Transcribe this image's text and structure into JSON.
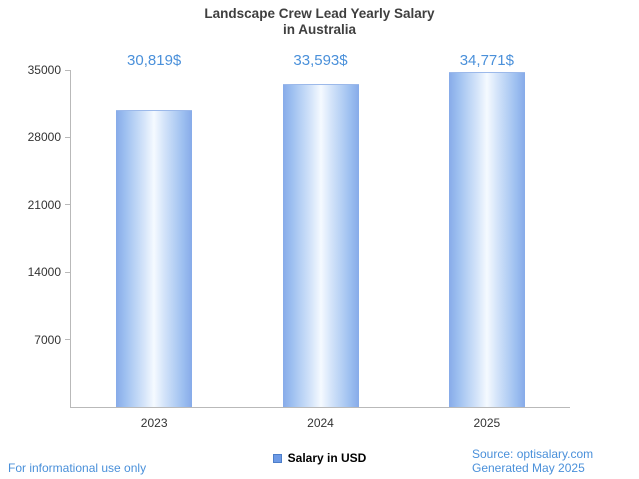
{
  "chart_data": {
    "type": "bar",
    "title": "Landscape Crew Lead Yearly Salary in Australia",
    "title_lines": [
      "Landscape Crew Lead Yearly Salary",
      "in Australia"
    ],
    "categories": [
      "2023",
      "2024",
      "2025"
    ],
    "values": [
      30819,
      33593,
      34771
    ],
    "value_labels": [
      "30,819$",
      "33,593$",
      "34,771$"
    ],
    "series_name": "Salary in USD",
    "xlabel": "",
    "ylabel": "",
    "ylim": [
      0,
      35000
    ],
    "yticks": [
      7000,
      14000,
      21000,
      28000,
      35000
    ],
    "grid": false,
    "legend_position": "bottom-center",
    "colors": {
      "bar_edge": "#87abe9",
      "bar_center": "#f5faff",
      "accent_text": "#4a90da",
      "axis": "#b9b9b9",
      "legend_swatch": "#6d9ae6"
    }
  },
  "legend": {
    "label": "Salary in USD"
  },
  "footer": {
    "disclaimer": "For informational use only",
    "source": "Source: optisalary.com",
    "generated": "Generated May 2025"
  }
}
